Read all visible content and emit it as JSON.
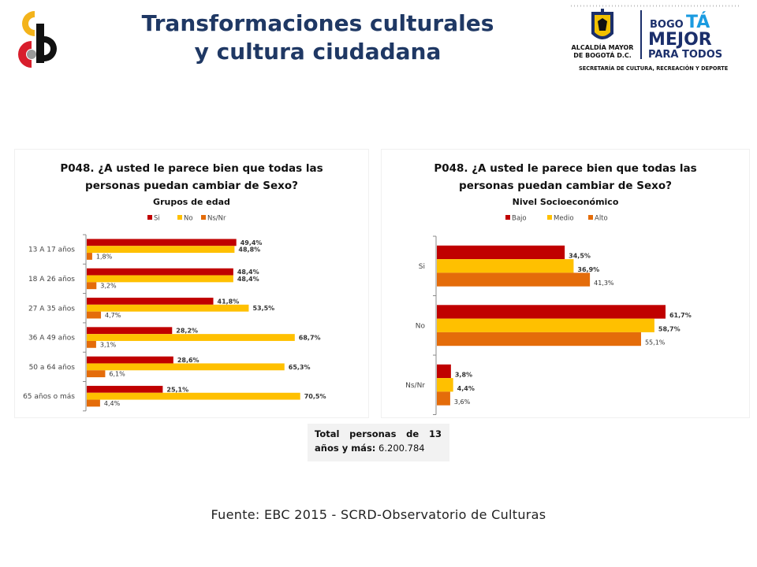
{
  "header": {
    "title_line1": "Transformaciones culturales",
    "title_line2": "y cultura ciudadana",
    "logo_left_letters": "cb",
    "logo_right": {
      "entity_line1": "ALCALDÍA MAYOR",
      "entity_line2": "DE BOGOTÁ D.C.",
      "brand_bo": "BOGO",
      "brand_ta": "TÁ",
      "brand_line2": "MEJOR",
      "brand_line3": "PARA TODOS",
      "secretaria": "SECRETARÍA DE CULTURA, RECREACIÓN Y DEPORTE"
    }
  },
  "colors": {
    "title": "#1f3864",
    "si": "#c00000",
    "no": "#ffc000",
    "nsnr": "#e46c0a",
    "bajo": "#c00000",
    "medio": "#ffc000",
    "alto": "#e46c0a"
  },
  "chart_data": [
    {
      "type": "bar",
      "orientation": "horizontal",
      "title": "P048. ¿A usted le parece bien que todas las personas puedan cambiar de Sexo?",
      "title_line1": "P048. ¿A usted le parece bien que todas las",
      "title_line2": "personas puedan cambiar de Sexo?",
      "subtitle": "Grupos de edad",
      "legend_position": "top",
      "categories": [
        "13 A 17 años",
        "18 A 26 años",
        "27 A 35 años",
        "36 A 49 años",
        "50 a 64 años",
        "65 años o más"
      ],
      "series": [
        {
          "name": "Si",
          "color": "#c00000",
          "values": [
            49.4,
            48.4,
            41.8,
            28.2,
            28.6,
            25.1
          ],
          "labels": [
            "49,4%",
            "48,4%",
            "41,8%",
            "28,2%",
            "28,6%",
            "25,1%"
          ]
        },
        {
          "name": "No",
          "color": "#ffc000",
          "values": [
            48.8,
            48.4,
            53.5,
            68.7,
            65.3,
            70.5
          ],
          "labels": [
            "48,8%",
            "48,4%",
            "53,5%",
            "68,7%",
            "65,3%",
            "70,5%"
          ]
        },
        {
          "name": "Ns/Nr",
          "color": "#e46c0a",
          "values": [
            1.8,
            3.2,
            4.7,
            3.1,
            6.1,
            4.4
          ],
          "labels": [
            "1,8%",
            "3,2%",
            "4,7%",
            "3,1%",
            "6,1%",
            "4,4%"
          ]
        }
      ],
      "xlim": [
        0,
        100
      ],
      "grid": false
    },
    {
      "type": "bar",
      "orientation": "horizontal",
      "title": "P048. ¿A usted le parece bien que todas las personas puedan cambiar de Sexo?",
      "title_line1": "P048. ¿A usted le parece bien que todas las",
      "title_line2": "personas puedan cambiar de Sexo?",
      "subtitle": "Nivel Socioeconómico",
      "legend_position": "top",
      "categories": [
        "Si",
        "No",
        "Ns/Nr"
      ],
      "series": [
        {
          "name": "Bajo",
          "color": "#c00000",
          "values": [
            34.5,
            61.7,
            3.8
          ],
          "labels": [
            "34,5%",
            "61,7%",
            "3,8%"
          ]
        },
        {
          "name": "Medio",
          "color": "#ffc000",
          "values": [
            36.9,
            58.7,
            4.4
          ],
          "labels": [
            "36,9%",
            "58,7%",
            "4,4%"
          ]
        },
        {
          "name": "Alto",
          "color": "#e46c0a",
          "values": [
            41.3,
            55.1,
            3.6
          ],
          "labels": [
            "41,3%",
            "55,1%",
            "3,6%"
          ]
        }
      ],
      "xlim": [
        0,
        100
      ],
      "grid": false
    }
  ],
  "total_box": {
    "line1_words": [
      "Total",
      "personas",
      "de",
      "13"
    ],
    "line2_bold": "años y más:",
    "line2_value": "6.200.784"
  },
  "source": "Fuente: EBC  2015 - SCRD-Observatorio  de Culturas"
}
